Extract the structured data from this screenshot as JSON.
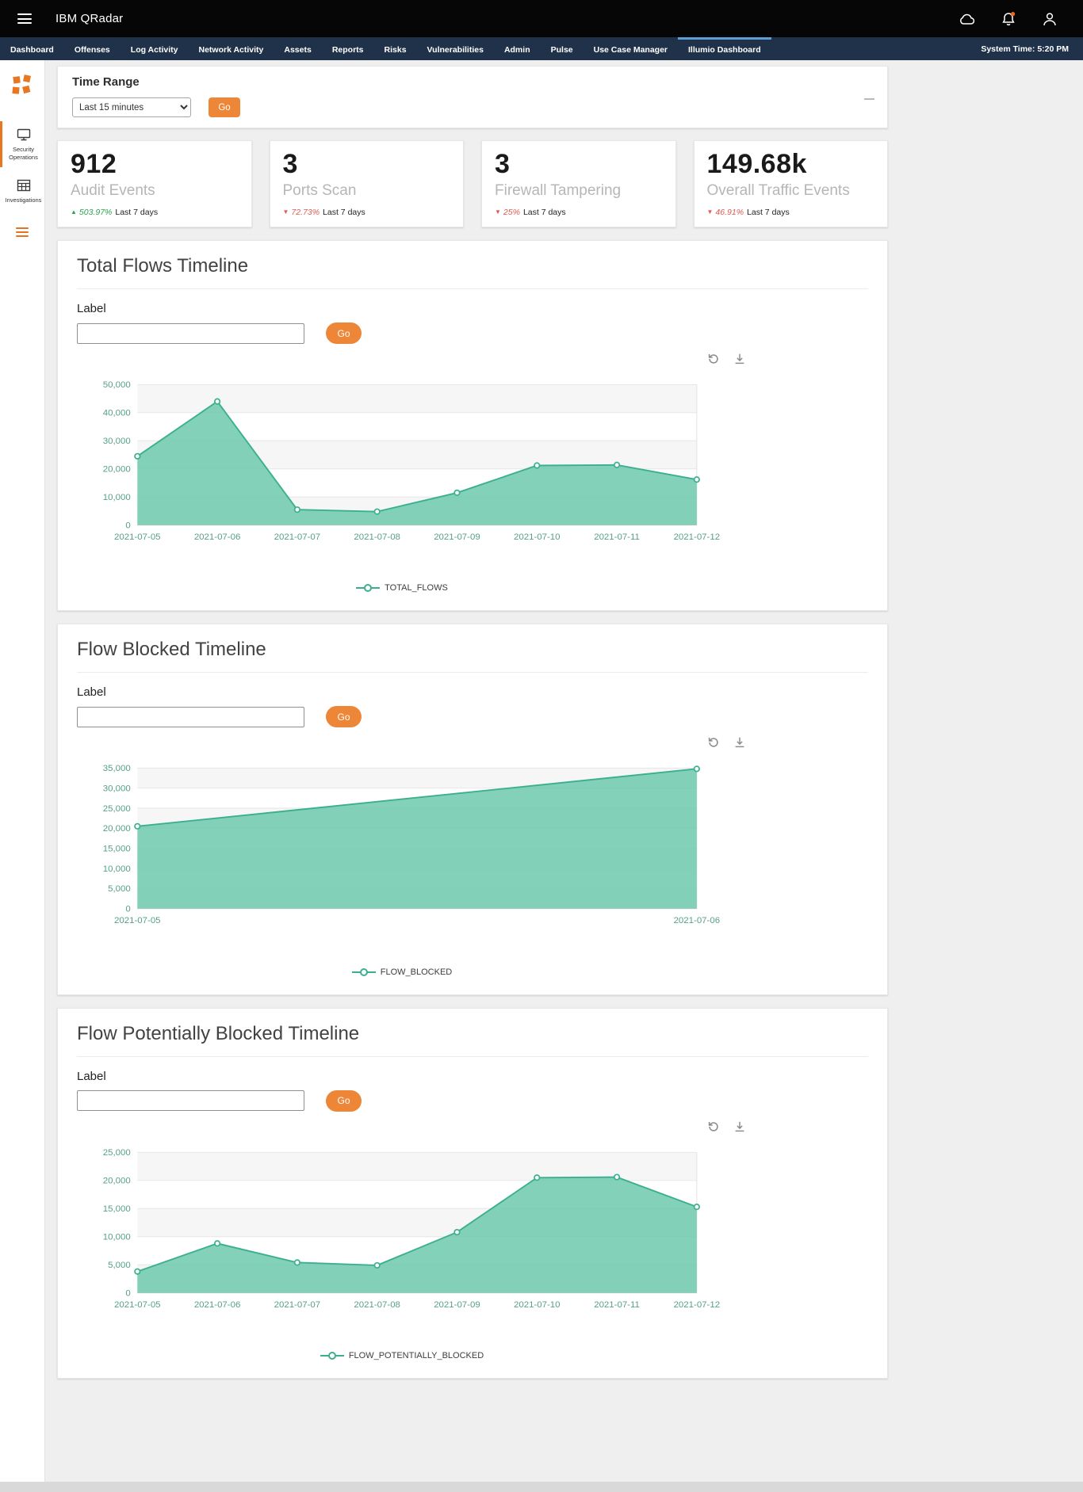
{
  "colors": {
    "accent_orange": "#ee8638",
    "nav_active_blue": "#5b9fd6",
    "series_line": "#3cb08e",
    "series_fill": "#6cc9ac",
    "trend_up_green": "#2fa352",
    "trend_down_red": "#e05a52"
  },
  "header": {
    "app_title": "IBM QRadar"
  },
  "nav": {
    "tabs": [
      "Dashboard",
      "Offenses",
      "Log Activity",
      "Network Activity",
      "Assets",
      "Reports",
      "Risks",
      "Vulnerabilities",
      "Admin",
      "Pulse",
      "Use Case Manager",
      "Illumio Dashboard"
    ],
    "active_tab": "Illumio Dashboard",
    "system_time": "System Time: 5:20 PM"
  },
  "sidebar": {
    "items": [
      {
        "label": "Security Operations",
        "active": true
      },
      {
        "label": "Investigations",
        "active": false
      }
    ]
  },
  "time_range": {
    "title": "Time Range",
    "selected_option": "Last 15 minutes",
    "go_label": "Go"
  },
  "stats": [
    {
      "value": "912",
      "label": "Audit Events",
      "arrow": "▲",
      "delta": "503.97%",
      "period": "Last 7 days",
      "trend": "up"
    },
    {
      "value": "3",
      "label": "Ports Scan",
      "arrow": "▼",
      "delta": "72.73%",
      "period": "Last 7 days",
      "trend": "down"
    },
    {
      "value": "3",
      "label": "Firewall Tampering",
      "arrow": "▼",
      "delta": "25%",
      "period": "Last 7 days",
      "trend": "down"
    },
    {
      "value": "149.68k",
      "label": "Overall Traffic Events",
      "arrow": "▼",
      "delta": "46.91%",
      "period": "Last 7 days",
      "trend": "down"
    }
  ],
  "panels": [
    {
      "title": "Total Flows Timeline",
      "field_label": "Label",
      "input_value": "",
      "go_label": "Go",
      "legend": "TOTAL_FLOWS"
    },
    {
      "title": "Flow Blocked Timeline",
      "field_label": "Label",
      "input_value": "",
      "go_label": "Go",
      "legend": "FLOW_BLOCKED"
    },
    {
      "title": "Flow Potentially Blocked Timeline",
      "field_label": "Label",
      "input_value": "",
      "go_label": "Go",
      "legend": "FLOW_POTENTIALLY_BLOCKED"
    }
  ],
  "chart_data": [
    {
      "type": "area",
      "title": "Total Flows Timeline",
      "series_name": "TOTAL_FLOWS",
      "x": [
        "2021-07-05",
        "2021-07-06",
        "2021-07-07",
        "2021-07-08",
        "2021-07-09",
        "2021-07-10",
        "2021-07-11",
        "2021-07-12"
      ],
      "values": [
        24500,
        44000,
        5500,
        4800,
        11500,
        21200,
        21400,
        16200
      ],
      "xlabel": "",
      "ylabel": "",
      "ylim": [
        0,
        50000
      ],
      "ytick_step": 10000,
      "grid": true,
      "legend_position": "bottom",
      "line_color": "#3cb08e",
      "fill_color": "#6cc9ac",
      "tick_color": "#55a183"
    },
    {
      "type": "area",
      "title": "Flow Blocked Timeline",
      "series_name": "FLOW_BLOCKED",
      "x": [
        "2021-07-05",
        "2021-07-06"
      ],
      "values": [
        20500,
        34800
      ],
      "xlabel": "",
      "ylabel": "",
      "ylim": [
        0,
        35000
      ],
      "ytick_step": 5000,
      "grid": true,
      "legend_position": "bottom",
      "line_color": "#3cb08e",
      "fill_color": "#6cc9ac",
      "tick_color": "#55a183"
    },
    {
      "type": "area",
      "title": "Flow Potentially Blocked Timeline",
      "series_name": "FLOW_POTENTIALLY_BLOCKED",
      "x": [
        "2021-07-05",
        "2021-07-06",
        "2021-07-07",
        "2021-07-08",
        "2021-07-09",
        "2021-07-10",
        "2021-07-11",
        "2021-07-12"
      ],
      "values": [
        3800,
        8800,
        5400,
        4900,
        10800,
        20500,
        20600,
        15300
      ],
      "xlabel": "",
      "ylabel": "",
      "ylim": [
        0,
        25000
      ],
      "ytick_step": 5000,
      "grid": true,
      "legend_position": "bottom",
      "line_color": "#3cb08e",
      "fill_color": "#6cc9ac",
      "tick_color": "#55a183"
    }
  ]
}
